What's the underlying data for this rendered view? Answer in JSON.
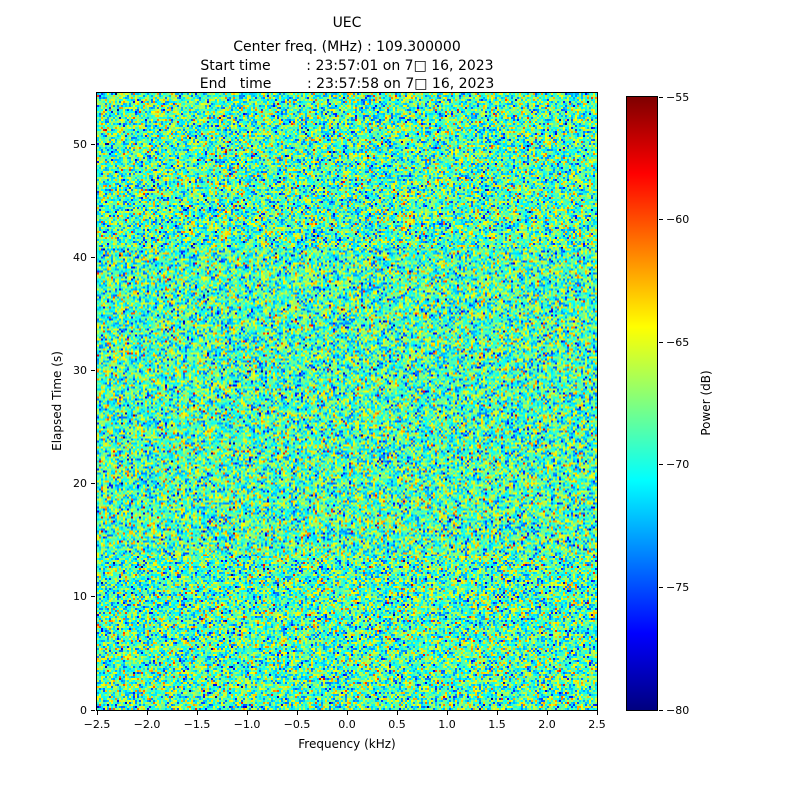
{
  "chart_data": {
    "type": "heatmap",
    "title": "UEC",
    "annotations": [
      "Center freq. (MHz) : 109.300000",
      "Start time        : 23:57:01 on 7□ 16, 2023",
      "End   time        : 23:57:58 on 7□ 16, 2023"
    ],
    "xlabel": "Frequency (kHz)",
    "ylabel": "Elapsed Time (s)",
    "xlim": [
      -2.5,
      2.5
    ],
    "ylim": [
      0,
      54.6
    ],
    "x_tick_values": [
      -2.5,
      -2.0,
      -1.5,
      -1.0,
      -0.5,
      0.0,
      0.5,
      1.0,
      1.5,
      2.0,
      2.5
    ],
    "x_tick_labels": [
      "−2.5",
      "−2.0",
      "−1.5",
      "−1.0",
      "−0.5",
      "0.0",
      "0.5",
      "1.0",
      "1.5",
      "2.0",
      "2.5"
    ],
    "y_tick_values": [
      0,
      10,
      20,
      30,
      40,
      50
    ],
    "y_tick_labels": [
      "0",
      "10",
      "20",
      "30",
      "40",
      "50"
    ],
    "colorbar": {
      "label": "Power (dB)",
      "min": -80,
      "max": -55,
      "tick_values": [
        -55,
        -60,
        -65,
        -70,
        -75,
        -80
      ],
      "tick_labels": [
        "−55",
        "−60",
        "−65",
        "−70",
        "−75",
        "−80"
      ],
      "colormap": "jet",
      "gradient_stops": [
        {
          "pos": 0.0,
          "color": "#00007f"
        },
        {
          "pos": 0.125,
          "color": "#0000ff"
        },
        {
          "pos": 0.375,
          "color": "#00ffff"
        },
        {
          "pos": 0.625,
          "color": "#ffff00"
        },
        {
          "pos": 0.875,
          "color": "#ff0000"
        },
        {
          "pos": 1.0,
          "color": "#7f0000"
        }
      ]
    },
    "noise": {
      "description": "uniform random spectral noise across full band, no visible signal structure",
      "mean_db": -68.8,
      "std_db": 3.4,
      "seed": 42,
      "cols": 250,
      "rows": 309
    }
  }
}
